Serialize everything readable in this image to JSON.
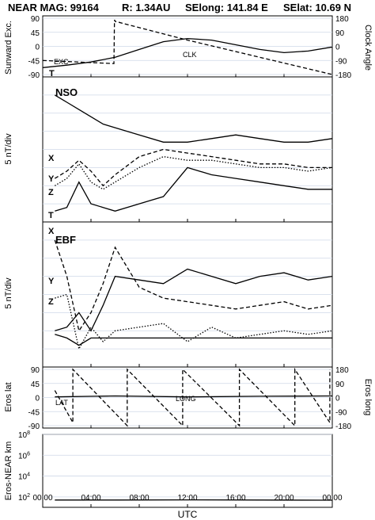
{
  "header": {
    "title": "NEAR MAG: 99164",
    "radius": "R: 1.34AU",
    "selong": "SElong:  141.84 E",
    "selat": "SElat:   10.69 N"
  },
  "xaxis": {
    "label": "UTC",
    "ticks": [
      "00:00",
      "04:00",
      "08:00",
      "12:00",
      "16:00",
      "20:00",
      "00:00"
    ],
    "range_hours": [
      0,
      24
    ]
  },
  "chart_data": [
    {
      "type": "line",
      "panel": "sunward-excursion-clock-angle",
      "ylabel_left": "Sunward Exc.",
      "ylabel_right": "Clock Angle",
      "ylim_left": [
        -90,
        90
      ],
      "ylim_right": [
        -180,
        180
      ],
      "yticks_left": [
        "90",
        "45",
        "0",
        "-45",
        "-90"
      ],
      "yticks_right": [
        "180",
        "90",
        "0",
        "-90",
        "-180"
      ],
      "annotations": [
        "EXC",
        "CLK",
        "T"
      ],
      "series": [
        {
          "name": "EXC",
          "style": "solid",
          "x": [
            0,
            2,
            4,
            6,
            8,
            10,
            12,
            14,
            16,
            18,
            20,
            22,
            24
          ],
          "y": [
            -68,
            -60,
            -50,
            -35,
            -10,
            15,
            25,
            20,
            5,
            -10,
            -20,
            -15,
            -2
          ]
        },
        {
          "name": "CLK",
          "style": "dashed",
          "x": [
            0,
            5.9,
            5.95,
            6,
            12,
            18,
            24
          ],
          "y": [
            -90,
            -110,
            170,
            160,
            40,
            -70,
            -180
          ]
        }
      ]
    },
    {
      "type": "line",
      "panel": "nso",
      "ylabel": "5 nT/div",
      "panel_label": "NSO",
      "series_labels": [
        "X",
        "Y",
        "Z",
        "T"
      ],
      "series": [
        {
          "name": "T",
          "style": "solid",
          "x": [
            1,
            2,
            3,
            4,
            5,
            6,
            8,
            10,
            12,
            14,
            16,
            18,
            20,
            22,
            24
          ],
          "y": [
            30,
            28,
            26,
            24,
            22,
            21,
            19,
            17,
            17,
            18,
            19,
            18,
            17,
            17,
            18
          ]
        },
        {
          "name": "X",
          "style": "dashed",
          "x": [
            1,
            2,
            3,
            4,
            5,
            6,
            8,
            10,
            12,
            14,
            16,
            18,
            20,
            22,
            24
          ],
          "y": [
            7,
            9,
            12,
            9,
            5,
            8,
            13,
            15,
            14,
            13,
            12,
            11,
            11,
            10,
            10
          ]
        },
        {
          "name": "Y",
          "style": "dotted",
          "x": [
            1,
            2,
            3,
            4,
            5,
            6,
            8,
            10,
            12,
            14,
            16,
            18,
            20,
            22,
            24
          ],
          "y": [
            5,
            7,
            11,
            6,
            4,
            6,
            10,
            13,
            12,
            12,
            11,
            10,
            10,
            9,
            10
          ]
        },
        {
          "name": "Z",
          "style": "solid",
          "x": [
            1,
            2,
            3,
            4,
            5,
            6,
            8,
            10,
            12,
            14,
            16,
            18,
            20,
            22,
            24
          ],
          "y": [
            -2,
            -1,
            6,
            0,
            -1,
            -2,
            0,
            2,
            10,
            8,
            7,
            6,
            5,
            4,
            4
          ]
        }
      ]
    },
    {
      "type": "line",
      "panel": "ebf",
      "ylabel": "5 nT/div",
      "panel_label": "EBF",
      "series_labels": [
        "X",
        "Y",
        "Z"
      ],
      "series": [
        {
          "name": "X",
          "style": "dashed",
          "x": [
            1,
            2,
            3,
            4,
            5,
            6,
            8,
            10,
            12,
            14,
            16,
            18,
            20,
            22,
            24
          ],
          "y": [
            30,
            20,
            5,
            10,
            18,
            28,
            17,
            14,
            13,
            12,
            11,
            12,
            13,
            11,
            12
          ]
        },
        {
          "name": "Y",
          "style": "dotted",
          "x": [
            1,
            2,
            3,
            4,
            5,
            6,
            8,
            10,
            12,
            14,
            16,
            18,
            20,
            22,
            24
          ],
          "y": [
            14,
            15,
            0,
            6,
            2,
            5,
            6,
            7,
            2,
            6,
            3,
            4,
            5,
            4,
            5
          ]
        },
        {
          "name": "Z",
          "style": "solid",
          "x": [
            1,
            2,
            3,
            4,
            5,
            6,
            8,
            10,
            12,
            14,
            16,
            18,
            20,
            22,
            24
          ],
          "y": [
            5,
            6,
            10,
            5,
            12,
            20,
            19,
            18,
            22,
            20,
            18,
            20,
            21,
            19,
            20
          ]
        },
        {
          "name": "T",
          "style": "solid",
          "x": [
            1,
            2,
            3,
            4,
            5,
            6,
            8,
            10,
            12,
            14,
            16,
            18,
            20,
            22,
            24
          ],
          "y": [
            4,
            3,
            1,
            3,
            3,
            3,
            3,
            3,
            3,
            3,
            3,
            3,
            3,
            3,
            3
          ]
        }
      ]
    },
    {
      "type": "line",
      "panel": "eros-lat-long",
      "ylabel_left": "Eros lat",
      "ylabel_right": "Eros long",
      "ylim_left": [
        -90,
        90
      ],
      "ylim_right": [
        -180,
        180
      ],
      "yticks_left": [
        "90",
        "45",
        "0",
        "-45",
        "-90"
      ],
      "yticks_right": [
        "180",
        "90",
        "0",
        "-90",
        "-180"
      ],
      "annotations": [
        "LAT",
        "LONG"
      ],
      "series": [
        {
          "name": "LAT",
          "style": "solid",
          "x": [
            1,
            6,
            12,
            18,
            24
          ],
          "y": [
            2,
            5,
            2,
            4,
            5
          ]
        },
        {
          "name": "LONG",
          "style": "dashed",
          "x": [
            1,
            2.5,
            2.5,
            7,
            7,
            11.6,
            11.6,
            16.3,
            16.3,
            20.9,
            20.9,
            23.8,
            23.8
          ],
          "y": [
            45,
            -160,
            180,
            -180,
            180,
            -180,
            180,
            -180,
            180,
            -180,
            180,
            -160,
            180
          ]
        }
      ]
    },
    {
      "type": "line",
      "panel": "eros-near-distance",
      "ylabel": "Eros-NEAR km",
      "yscale": "log",
      "ylim": [
        10,
        100000000
      ],
      "yticks": [
        "10^8",
        "10^6",
        "10^4",
        "10^2"
      ],
      "series": [
        {
          "name": "",
          "style": "solid",
          "x": [
            1,
            6,
            12,
            18,
            24
          ],
          "y": [
            50,
            50,
            52,
            50,
            48
          ]
        }
      ]
    }
  ]
}
